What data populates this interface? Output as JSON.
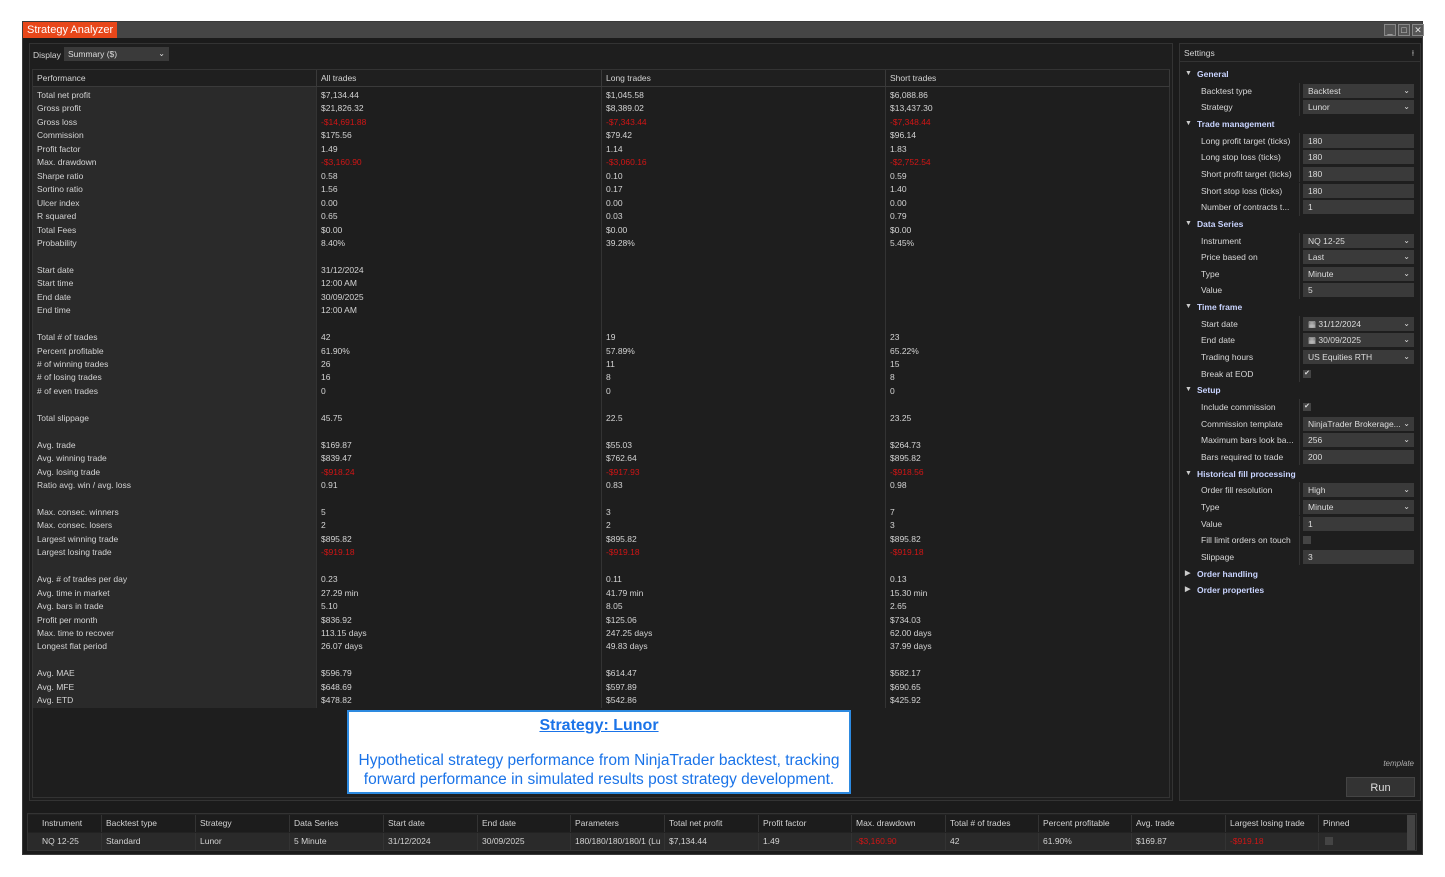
{
  "window": {
    "title": "Strategy Analyzer",
    "controls": [
      "minimize",
      "maximize",
      "close"
    ]
  },
  "display": {
    "label": "Display",
    "value": "Summary ($)"
  },
  "performance": {
    "headers": [
      "Performance",
      "All trades",
      "Long trades",
      "Short trades"
    ],
    "rows": [
      [
        "Total net profit",
        "$7,134.44",
        "$1,045.58",
        "$6,088.86"
      ],
      [
        "Gross profit",
        "$21,826.32",
        "$8,389.02",
        "$13,437.30"
      ],
      [
        "Gross loss",
        "-$14,691.88",
        "-$7,343.44",
        "-$7,348.44"
      ],
      [
        "Commission",
        "$175.56",
        "$79.42",
        "$96.14"
      ],
      [
        "Profit factor",
        "1.49",
        "1.14",
        "1.83"
      ],
      [
        "Max. drawdown",
        "-$3,160.90",
        "-$3,060.16",
        "-$2,752.54"
      ],
      [
        "Sharpe ratio",
        "0.58",
        "0.10",
        "0.59"
      ],
      [
        "Sortino ratio",
        "1.56",
        "0.17",
        "1.40"
      ],
      [
        "Ulcer index",
        "0.00",
        "0.00",
        "0.00"
      ],
      [
        "R squared",
        "0.65",
        "0.03",
        "0.79"
      ],
      [
        "Total Fees",
        "$0.00",
        "$0.00",
        "$0.00"
      ],
      [
        "Probability",
        "8.40%",
        "39.28%",
        "5.45%"
      ],
      null,
      [
        "Start date",
        "31/12/2024",
        "",
        ""
      ],
      [
        "Start time",
        "12:00 AM",
        "",
        ""
      ],
      [
        "End date",
        "30/09/2025",
        "",
        ""
      ],
      [
        "End time",
        "12:00 AM",
        "",
        ""
      ],
      null,
      [
        "Total # of trades",
        "42",
        "19",
        "23"
      ],
      [
        "Percent profitable",
        "61.90%",
        "57.89%",
        "65.22%"
      ],
      [
        "# of winning trades",
        "26",
        "11",
        "15"
      ],
      [
        "# of losing trades",
        "16",
        "8",
        "8"
      ],
      [
        "# of even trades",
        "0",
        "0",
        "0"
      ],
      null,
      [
        "Total slippage",
        "45.75",
        "22.5",
        "23.25"
      ],
      null,
      [
        "Avg. trade",
        "$169.87",
        "$55.03",
        "$264.73"
      ],
      [
        "Avg. winning trade",
        "$839.47",
        "$762.64",
        "$895.82"
      ],
      [
        "Avg. losing trade",
        "-$918.24",
        "-$917.93",
        "-$918.56"
      ],
      [
        "Ratio avg. win / avg. loss",
        "0.91",
        "0.83",
        "0.98"
      ],
      null,
      [
        "Max. consec. winners",
        "5",
        "3",
        "7"
      ],
      [
        "Max. consec. losers",
        "2",
        "2",
        "3"
      ],
      [
        "Largest winning trade",
        "$895.82",
        "$895.82",
        "$895.82"
      ],
      [
        "Largest losing trade",
        "-$919.18",
        "-$919.18",
        "-$919.18"
      ],
      null,
      [
        "Avg. # of trades per day",
        "0.23",
        "0.11",
        "0.13"
      ],
      [
        "Avg. time in market",
        "27.29 min",
        "41.79 min",
        "15.30 min"
      ],
      [
        "Avg. bars in trade",
        "5.10",
        "8.05",
        "2.65"
      ],
      [
        "Profit per month",
        "$836.92",
        "$125.06",
        "$734.03"
      ],
      [
        "Max. time to recover",
        "113.15 days",
        "247.25 days",
        "62.00 days"
      ],
      [
        "Longest flat period",
        "26.07 days",
        "49.83 days",
        "37.99 days"
      ],
      null,
      [
        "Avg. MAE",
        "$596.79",
        "$614.47",
        "$582.17"
      ],
      [
        "Avg. MFE",
        "$648.69",
        "$597.89",
        "$690.65"
      ],
      [
        "Avg. ETD",
        "$478.82",
        "$542.86",
        "$425.92"
      ]
    ]
  },
  "note": {
    "title": "Strategy: Lunor",
    "body": "Hypothetical strategy performance from NinjaTrader backtest, tracking forward performance in simulated results post strategy development."
  },
  "settings": {
    "title": "Settings",
    "items": [
      {
        "section": "General",
        "expanded": true
      },
      {
        "label": "Backtest type",
        "value": "Backtest",
        "kind": "select"
      },
      {
        "label": "Strategy",
        "value": "Lunor",
        "kind": "select"
      },
      {
        "section": "Trade management",
        "expanded": true
      },
      {
        "label": "Long profit target (ticks)",
        "value": "180",
        "kind": "text"
      },
      {
        "label": "Long stop loss (ticks)",
        "value": "180",
        "kind": "text"
      },
      {
        "label": "Short profit target (ticks)",
        "value": "180",
        "kind": "text"
      },
      {
        "label": "Short stop loss (ticks)",
        "value": "180",
        "kind": "text"
      },
      {
        "label": "Number of contracts t...",
        "value": "1",
        "kind": "text"
      },
      {
        "section": "Data Series",
        "expanded": true
      },
      {
        "label": "Instrument",
        "value": "NQ 12-25",
        "kind": "select"
      },
      {
        "label": "Price based on",
        "value": "Last",
        "kind": "select"
      },
      {
        "label": "Type",
        "value": "Minute",
        "kind": "select"
      },
      {
        "label": "Value",
        "value": "5",
        "kind": "text"
      },
      {
        "section": "Time frame",
        "expanded": true
      },
      {
        "label": "Start date",
        "value": "31/12/2024",
        "kind": "date"
      },
      {
        "label": "End date",
        "value": "30/09/2025",
        "kind": "date"
      },
      {
        "label": "Trading hours",
        "value": "US Equities RTH",
        "kind": "select"
      },
      {
        "label": "Break at EOD",
        "checked": true,
        "kind": "check"
      },
      {
        "section": "Setup",
        "expanded": true
      },
      {
        "label": "Include commission",
        "checked": true,
        "kind": "check"
      },
      {
        "label": "Commission template",
        "value": "NinjaTrader Brokerage...",
        "kind": "select"
      },
      {
        "label": "Maximum bars look ba...",
        "value": "256",
        "kind": "select"
      },
      {
        "label": "Bars required to trade",
        "value": "200",
        "kind": "text"
      },
      {
        "section": "Historical fill processing",
        "expanded": true
      },
      {
        "label": "Order fill resolution",
        "value": "High",
        "kind": "select"
      },
      {
        "label": "Type",
        "value": "Minute",
        "kind": "select"
      },
      {
        "label": "Value",
        "value": "1",
        "kind": "text"
      },
      {
        "label": "Fill limit orders on touch",
        "checked": false,
        "kind": "check"
      },
      {
        "label": "Slippage",
        "value": "3",
        "kind": "text"
      },
      {
        "section": "Order handling",
        "expanded": false
      },
      {
        "section": "Order properties",
        "expanded": false
      }
    ],
    "template_label": "template",
    "run_label": "Run"
  },
  "results": {
    "headers": [
      "Instrument",
      "Backtest type",
      "Strategy",
      "Data Series",
      "Start date",
      "End date",
      "Parameters",
      "Total net profit",
      "Profit factor",
      "Max. drawdown",
      "Total # of trades",
      "Percent profitable",
      "Avg. trade",
      "Largest losing trade",
      "Pinned"
    ],
    "row": [
      "NQ 12-25",
      "Standard",
      "Lunor",
      "5 Minute",
      "31/12/2024",
      "30/09/2025",
      "180/180/180/180/1 (Lu",
      "$7,134.44",
      "1.49",
      "-$3,160.90",
      "42",
      "61.90%",
      "$169.87",
      "-$919.18",
      ""
    ],
    "pinned": false
  },
  "colors": {
    "accent": "#e8471a",
    "negative": "#d11515",
    "note_blue": "#1a73e8",
    "section": "#c9d4ff"
  }
}
